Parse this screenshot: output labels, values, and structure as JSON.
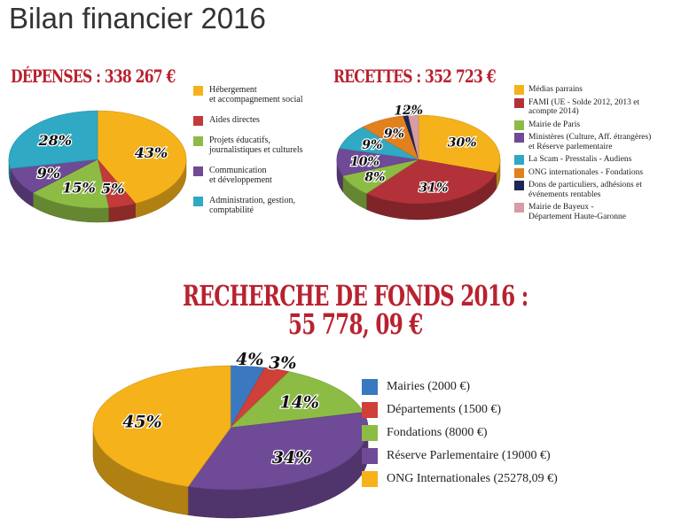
{
  "page": {
    "title": "Bilan financier 2016"
  },
  "chart_data": [
    {
      "type": "pie",
      "title": "DÉPENSES : 338 267 €",
      "slices": [
        {
          "label": "Hébergement\net accompagnement social",
          "value": 43,
          "display": "43%",
          "color": "#f5b21a"
        },
        {
          "label": "Aides directes",
          "value": 5,
          "display": "5%",
          "color": "#c23a3a"
        },
        {
          "label": "Projets éducatifs,\njournalistiques et culturels",
          "value": 15,
          "display": "15%",
          "color": "#8cbc44"
        },
        {
          "label": "Communication\net développement",
          "value": 9,
          "display": "9%",
          "color": "#6f4a96"
        },
        {
          "label": "Administration, gestion,\ncomptabilité",
          "value": 28,
          "display": "28%",
          "color": "#2fa9c4"
        }
      ]
    },
    {
      "type": "pie",
      "title": "RECETTES : 352 723 €",
      "slices": [
        {
          "label": "Médias parrains",
          "value": 30,
          "display": "30%",
          "color": "#f5b21a"
        },
        {
          "label": "FAMI (UE - Solde 2012, 2013 et\nacompte 2014)",
          "value": 31,
          "display": "31%",
          "color": "#b3323a"
        },
        {
          "label": "Mairie de Paris",
          "value": 8,
          "display": "8%",
          "color": "#8cbc44"
        },
        {
          "label": "Ministères (Culture, Aff. étrangères)\net Réserve parlementaire",
          "value": 10,
          "display": "10%",
          "color": "#6f4a96"
        },
        {
          "label": "La Scam - Presstalis - Audiens",
          "value": 9,
          "display": "9%",
          "color": "#2fa9c4"
        },
        {
          "label": "ONG internationales - Fondations",
          "value": 9,
          "display": "9%",
          "color": "#e2801e"
        },
        {
          "label": "Dons de particuliers, adhésions et\névénements rentables",
          "value": 1,
          "display": "1%",
          "color": "#1d2654"
        },
        {
          "label": "Mairie de Bayeux -\nDépartement Haute-Garonne",
          "value": 2,
          "display": "2%",
          "color": "#d79ca4"
        }
      ]
    },
    {
      "type": "pie",
      "title": "RECHERCHE DE FONDS 2016 :\n55 778, 09 €",
      "slices": [
        {
          "label": "Mairies (2000 €)",
          "value": 4,
          "display": "4%",
          "color": "#3a78c0"
        },
        {
          "label": "Départements (1500 €)",
          "value": 3,
          "display": "3%",
          "color": "#cf4038"
        },
        {
          "label": "Fondations (8000 €)",
          "value": 14,
          "display": "14%",
          "color": "#8cbc44"
        },
        {
          "label": "Réserve Parlementaire (19000 €)",
          "value": 34,
          "display": "34%",
          "color": "#6f4a96"
        },
        {
          "label": "ONG Internationales (25278,09 €)",
          "value": 45,
          "display": "45%",
          "color": "#f5b21a"
        }
      ]
    }
  ]
}
